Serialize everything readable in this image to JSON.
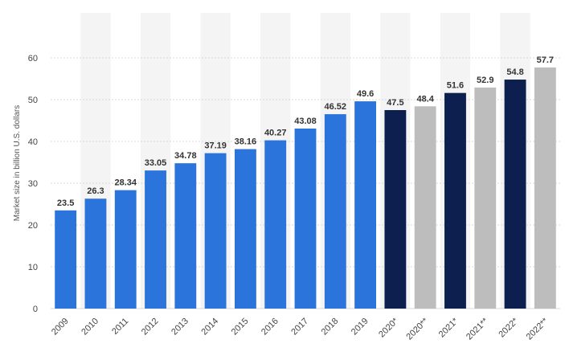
{
  "chart_data": {
    "type": "bar",
    "title": "",
    "xlabel": "",
    "ylabel": "Market size in billion U.S. dollars",
    "ylim": [
      0,
      60
    ],
    "yticks": [
      0,
      10,
      20,
      30,
      40,
      50,
      60
    ],
    "grid": true,
    "legend": "none",
    "categories": [
      "2009",
      "2010",
      "2011",
      "2012",
      "2013",
      "2014",
      "2015",
      "2016",
      "2017",
      "2018",
      "2019",
      "2020*",
      "2020**",
      "2021*",
      "2021**",
      "2022*",
      "2022**"
    ],
    "values": [
      23.5,
      26.3,
      28.34,
      33.05,
      34.78,
      37.19,
      38.16,
      40.27,
      43.08,
      46.52,
      49.6,
      47.5,
      48.4,
      51.6,
      52.9,
      54.8,
      57.7
    ],
    "value_labels": [
      "23.5",
      "26.3",
      "28.34",
      "33.05",
      "34.78",
      "37.19",
      "38.16",
      "40.27",
      "43.08",
      "46.52",
      "49.6",
      "47.5",
      "48.4",
      "51.6",
      "52.9",
      "54.8",
      "57.7"
    ],
    "bar_colors": [
      "#2b74dc",
      "#2b74dc",
      "#2b74dc",
      "#2b74dc",
      "#2b74dc",
      "#2b74dc",
      "#2b74dc",
      "#2b74dc",
      "#2b74dc",
      "#2b74dc",
      "#2b74dc",
      "#0d1f4f",
      "#bdbdbd",
      "#0d1f4f",
      "#bdbdbd",
      "#0d1f4f",
      "#bdbdbd"
    ]
  },
  "colors": {
    "historical": "#2b74dc",
    "forecast_dark": "#0d1f4f",
    "forecast_grey": "#bdbdbd",
    "gridline": "#d8d8d8",
    "band": "#f4f4f4"
  }
}
